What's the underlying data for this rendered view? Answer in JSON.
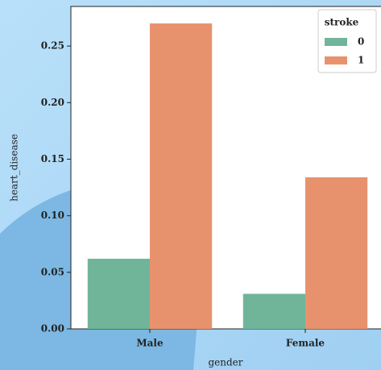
{
  "chart_data": {
    "type": "bar",
    "x_label": "gender",
    "y_label": "heart_disease",
    "categories": [
      "Male",
      "Female"
    ],
    "legend_title": "stroke",
    "legend_position": "upper right",
    "series": [
      {
        "name": "0",
        "color": "#70b59a",
        "values": [
          0.062,
          0.031
        ]
      },
      {
        "name": "1",
        "color": "#e8926d",
        "values": [
          0.27,
          0.134
        ]
      }
    ],
    "ylim": [
      0,
      0.285
    ],
    "yticks": [
      {
        "value": 0,
        "label": "0.00"
      },
      0.05,
      {
        "value": 0.1,
        "label": "0.10"
      },
      0.15,
      {
        "value": 0.2,
        "label": "0.20"
      },
      0.25
    ]
  }
}
